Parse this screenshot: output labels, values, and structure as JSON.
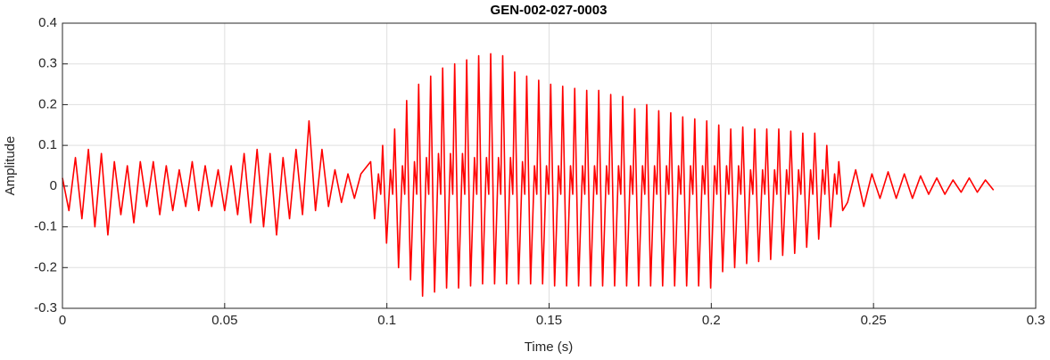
{
  "chart_data": {
    "type": "line",
    "title": "GEN-002-027-0003",
    "xlabel": "Time (s)",
    "ylabel": "Amplitude",
    "xlim": [
      0,
      0.3
    ],
    "ylim": [
      -0.3,
      0.4
    ],
    "xticks": [
      0,
      0.05,
      0.1,
      0.15,
      0.2,
      0.25,
      0.3
    ],
    "yticks": [
      -0.3,
      -0.2,
      -0.1,
      0,
      0.1,
      0.2,
      0.3,
      0.4
    ],
    "grid": true,
    "x": [
      0,
      0.002,
      0.004,
      0.006,
      0.008,
      0.01,
      0.012,
      0.014,
      0.016,
      0.018,
      0.02,
      0.022,
      0.024,
      0.026,
      0.028,
      0.03,
      0.032,
      0.034,
      0.036,
      0.038,
      0.04,
      0.042,
      0.044,
      0.046,
      0.048,
      0.05,
      0.052,
      0.054,
      0.056,
      0.058,
      0.06,
      0.062,
      0.064,
      0.066,
      0.068,
      0.07,
      0.072,
      0.074,
      0.076,
      0.078,
      0.08,
      0.082,
      0.084,
      0.086,
      0.088,
      0.09,
      0.092,
      0.095,
      0.0962,
      0.0974,
      0.0981,
      0.0987,
      0.0999,
      0.1011,
      0.1018,
      0.1024,
      0.1036,
      0.1048,
      0.1055,
      0.1061,
      0.1073,
      0.1085,
      0.1092,
      0.1098,
      0.111,
      0.1122,
      0.1129,
      0.1135,
      0.1147,
      0.1159,
      0.1166,
      0.1172,
      0.1184,
      0.1196,
      0.1203,
      0.1209,
      0.1221,
      0.1233,
      0.124,
      0.1246,
      0.1258,
      0.127,
      0.1277,
      0.1283,
      0.1295,
      0.1307,
      0.1314,
      0.132,
      0.1332,
      0.1344,
      0.1351,
      0.1357,
      0.1369,
      0.1381,
      0.1388,
      0.1394,
      0.1406,
      0.1418,
      0.1425,
      0.1431,
      0.1443,
      0.1455,
      0.1462,
      0.1468,
      0.148,
      0.1492,
      0.1499,
      0.1505,
      0.1517,
      0.1529,
      0.1536,
      0.1542,
      0.1554,
      0.1566,
      0.1573,
      0.1579,
      0.1591,
      0.1603,
      0.161,
      0.1616,
      0.1628,
      0.164,
      0.1647,
      0.1653,
      0.1665,
      0.1677,
      0.1684,
      0.169,
      0.1702,
      0.1714,
      0.1721,
      0.1727,
      0.1739,
      0.1751,
      0.1758,
      0.1764,
      0.1776,
      0.1788,
      0.1795,
      0.1801,
      0.1813,
      0.1825,
      0.1832,
      0.1838,
      0.185,
      0.1862,
      0.1869,
      0.1875,
      0.1887,
      0.1899,
      0.1906,
      0.1912,
      0.1924,
      0.1936,
      0.1943,
      0.1949,
      0.1961,
      0.1973,
      0.198,
      0.1986,
      0.1998,
      0.201,
      0.2017,
      0.2023,
      0.2035,
      0.2047,
      0.2054,
      0.206,
      0.2072,
      0.2084,
      0.2091,
      0.2097,
      0.2109,
      0.2121,
      0.2128,
      0.2134,
      0.2146,
      0.2158,
      0.2165,
      0.2171,
      0.2183,
      0.2195,
      0.2202,
      0.2208,
      0.222,
      0.2232,
      0.2239,
      0.2245,
      0.2257,
      0.2269,
      0.2276,
      0.2282,
      0.2294,
      0.2306,
      0.2313,
      0.2319,
      0.2331,
      0.2343,
      0.235,
      0.2356,
      0.2368,
      0.238,
      0.2387,
      0.2393,
      0.2405,
      0.242,
      0.2445,
      0.247,
      0.2495,
      0.252,
      0.2545,
      0.257,
      0.2595,
      0.262,
      0.2645,
      0.267,
      0.2695,
      0.272,
      0.2745,
      0.277,
      0.2795,
      0.282,
      0.2845,
      0.287
    ],
    "series": [
      {
        "color": "#ff0000",
        "values": [
          0.02,
          -0.06,
          0.07,
          -0.08,
          0.09,
          -0.1,
          0.08,
          -0.12,
          0.06,
          -0.07,
          0.05,
          -0.09,
          0.06,
          -0.05,
          0.06,
          -0.07,
          0.05,
          -0.06,
          0.04,
          -0.05,
          0.06,
          -0.06,
          0.05,
          -0.05,
          0.04,
          -0.06,
          0.05,
          -0.07,
          0.08,
          -0.09,
          0.09,
          -0.1,
          0.08,
          -0.12,
          0.07,
          -0.08,
          0.09,
          -0.07,
          0.16,
          -0.06,
          0.09,
          -0.05,
          0.04,
          -0.04,
          0.03,
          -0.03,
          0.03,
          0.06,
          -0.08,
          0.03,
          -0.02,
          0.1,
          -0.14,
          0.04,
          -0.02,
          0.14,
          -0.2,
          0.05,
          -0.02,
          0.21,
          -0.23,
          0.06,
          -0.02,
          0.25,
          -0.27,
          0.07,
          -0.02,
          0.27,
          -0.26,
          0.08,
          -0.02,
          0.29,
          -0.25,
          0.08,
          -0.02,
          0.3,
          -0.25,
          0.08,
          -0.02,
          0.31,
          -0.245,
          0.07,
          -0.02,
          0.32,
          -0.24,
          0.07,
          -0.02,
          0.325,
          -0.24,
          0.07,
          -0.02,
          0.32,
          -0.24,
          0.07,
          -0.02,
          0.28,
          -0.24,
          0.06,
          -0.02,
          0.27,
          -0.24,
          0.05,
          -0.02,
          0.26,
          -0.24,
          0.05,
          -0.02,
          0.25,
          -0.245,
          0.05,
          -0.02,
          0.245,
          -0.245,
          0.05,
          -0.02,
          0.24,
          -0.245,
          0.05,
          -0.02,
          0.235,
          -0.245,
          0.05,
          -0.02,
          0.235,
          -0.245,
          0.05,
          -0.02,
          0.225,
          -0.245,
          0.05,
          -0.02,
          0.22,
          -0.245,
          0.05,
          -0.02,
          0.19,
          -0.245,
          0.05,
          -0.02,
          0.2,
          -0.245,
          0.05,
          -0.02,
          0.185,
          -0.245,
          0.05,
          -0.02,
          0.18,
          -0.245,
          0.05,
          -0.02,
          0.17,
          -0.245,
          0.05,
          -0.02,
          0.165,
          -0.245,
          0.05,
          -0.02,
          0.16,
          -0.25,
          0.05,
          -0.02,
          0.15,
          -0.21,
          0.05,
          -0.02,
          0.14,
          -0.2,
          0.05,
          -0.02,
          0.145,
          -0.19,
          0.04,
          -0.02,
          0.14,
          -0.185,
          0.04,
          -0.02,
          0.14,
          -0.18,
          0.04,
          -0.02,
          0.14,
          -0.17,
          0.04,
          -0.02,
          0.135,
          -0.165,
          0.04,
          -0.02,
          0.13,
          -0.15,
          0.04,
          -0.02,
          0.13,
          -0.13,
          0.04,
          -0.02,
          0.1,
          -0.1,
          0.03,
          -0.02,
          0.06,
          -0.06,
          -0.04,
          0.04,
          -0.05,
          0.03,
          -0.03,
          0.035,
          -0.03,
          0.03,
          -0.03,
          0.025,
          -0.02,
          0.02,
          -0.02,
          0.015,
          -0.015,
          0.02,
          -0.015,
          0.015,
          -0.01
        ]
      }
    ]
  }
}
